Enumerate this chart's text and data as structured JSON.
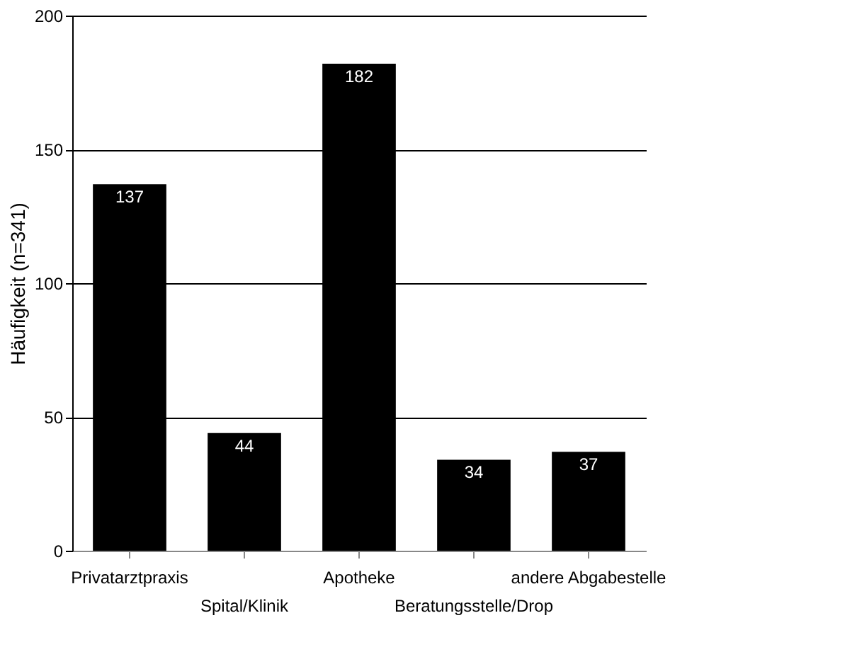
{
  "chart_data": {
    "type": "bar",
    "ylabel": "Häufigkeit (n=341)",
    "categories": [
      "Privatarztpraxis",
      "Spital/Klinik",
      "Apotheke",
      "Beratungsstelle/Drop",
      "andere Abgabestelle"
    ],
    "values": [
      137,
      44,
      182,
      34,
      37
    ],
    "color": "#000000",
    "ylim": [
      0,
      200
    ],
    "yticks": [
      0,
      50,
      100,
      150,
      200
    ],
    "grid": "y",
    "data_labels": true
  }
}
